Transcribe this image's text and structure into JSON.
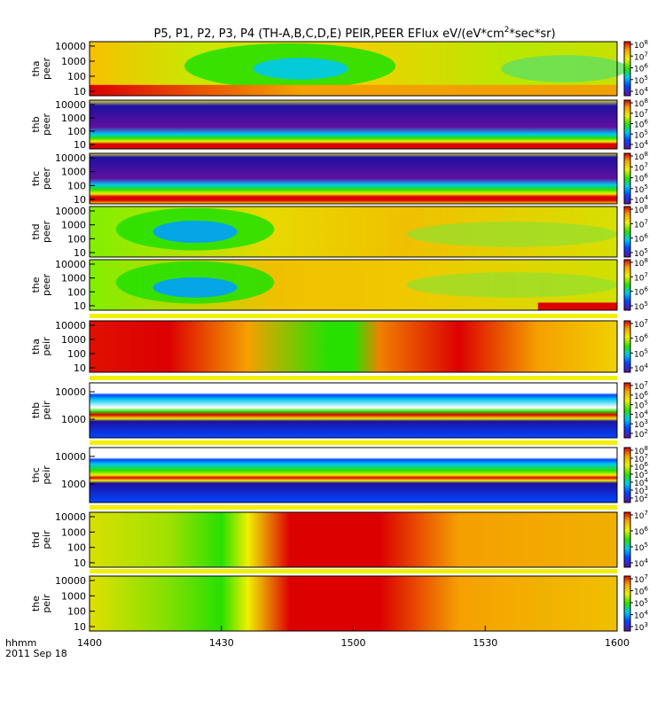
{
  "chart_data": {
    "type": "heatmap",
    "title": "P5, P1, P2, P3, P4 (TH-A,B,C,D,E) PEIR,PEER EFlux eV/(eV*cm",
    "title_sup": "2",
    "title_tail": "*sec*sr)",
    "xlabel_line1": "hhmm",
    "xlabel_line2": "2011 Sep 18",
    "x_ticks": [
      "1400",
      "1430",
      "1500",
      "1530",
      "1600"
    ],
    "x_range": [
      "1400",
      "1600"
    ],
    "panels": [
      {
        "name": "tha-peer",
        "ylabel": [
          "tha",
          "peer"
        ],
        "y_ticks": [
          "10000",
          "1000",
          "100",
          "10"
        ],
        "cbar_ticks": [
          {
            "base": "10",
            "exp": "8"
          },
          {
            "base": "10",
            "exp": "7"
          },
          {
            "base": "10",
            "exp": "6"
          },
          {
            "base": "10",
            "exp": "5"
          },
          {
            "base": "10",
            "exp": "4"
          }
        ],
        "colormap": "rainbow"
      },
      {
        "name": "thb-peer",
        "ylabel": [
          "thb",
          "peer"
        ],
        "y_ticks": [
          "10000",
          "1000",
          "100",
          "10"
        ],
        "cbar_ticks": [
          {
            "base": "10",
            "exp": "8"
          },
          {
            "base": "10",
            "exp": "7"
          },
          {
            "base": "10",
            "exp": "6"
          },
          {
            "base": "10",
            "exp": "5"
          },
          {
            "base": "10",
            "exp": "4"
          }
        ],
        "colormap": "rainbow"
      },
      {
        "name": "thc-peer",
        "ylabel": [
          "thc",
          "peer"
        ],
        "y_ticks": [
          "10000",
          "1000",
          "100",
          "10"
        ],
        "cbar_ticks": [
          {
            "base": "10",
            "exp": "8"
          },
          {
            "base": "10",
            "exp": "7"
          },
          {
            "base": "10",
            "exp": "6"
          },
          {
            "base": "10",
            "exp": "5"
          },
          {
            "base": "10",
            "exp": "4"
          }
        ],
        "colormap": "rainbow"
      },
      {
        "name": "thd-peer",
        "ylabel": [
          "thd",
          "peer"
        ],
        "y_ticks": [
          "10000",
          "1000",
          "100",
          "10"
        ],
        "cbar_ticks": [
          {
            "base": "10",
            "exp": "8"
          },
          {
            "base": "10",
            "exp": "7"
          },
          {
            "base": "10",
            "exp": "6"
          },
          {
            "base": "10",
            "exp": "5"
          }
        ],
        "colormap": "rainbow"
      },
      {
        "name": "the-peer",
        "ylabel": [
          "the",
          "peer"
        ],
        "y_ticks": [
          "10000",
          "1000",
          "100",
          "10"
        ],
        "cbar_ticks": [
          {
            "base": "10",
            "exp": "8"
          },
          {
            "base": "10",
            "exp": "7"
          },
          {
            "base": "10",
            "exp": "6"
          },
          {
            "base": "10",
            "exp": "5"
          }
        ],
        "colormap": "rainbow"
      },
      {
        "name": "tha-peir",
        "ylabel": [
          "tha",
          "peir"
        ],
        "y_ticks": [
          "10000",
          "1000",
          "100",
          "10"
        ],
        "cbar_ticks": [
          {
            "base": "10",
            "exp": "7"
          },
          {
            "base": "10",
            "exp": "6"
          },
          {
            "base": "10",
            "exp": "5"
          },
          {
            "base": "10",
            "exp": "4"
          }
        ],
        "colormap": "rainbow"
      },
      {
        "name": "thb-peir",
        "ylabel": [
          "thb",
          "peir"
        ],
        "y_ticks": [
          "10000",
          "1000"
        ],
        "cbar_ticks": [
          {
            "base": "10",
            "exp": "7"
          },
          {
            "base": "10",
            "exp": "6"
          },
          {
            "base": "10",
            "exp": "5"
          },
          {
            "base": "10",
            "exp": "4"
          },
          {
            "base": "10",
            "exp": "3"
          },
          {
            "base": "10",
            "exp": "2"
          }
        ],
        "colormap": "rainbow"
      },
      {
        "name": "thc-peir",
        "ylabel": [
          "thc",
          "peir"
        ],
        "y_ticks": [
          "10000",
          "1000"
        ],
        "cbar_ticks": [
          {
            "base": "10",
            "exp": "8"
          },
          {
            "base": "10",
            "exp": "7"
          },
          {
            "base": "10",
            "exp": "6"
          },
          {
            "base": "10",
            "exp": "5"
          },
          {
            "base": "10",
            "exp": "4"
          },
          {
            "base": "10",
            "exp": "3"
          },
          {
            "base": "10",
            "exp": "2"
          }
        ],
        "colormap": "rainbow"
      },
      {
        "name": "thd-peir",
        "ylabel": [
          "thd",
          "peir"
        ],
        "y_ticks": [
          "10000",
          "1000",
          "100",
          "10"
        ],
        "cbar_ticks": [
          {
            "base": "10",
            "exp": "7"
          },
          {
            "base": "10",
            "exp": "6"
          },
          {
            "base": "10",
            "exp": "5"
          },
          {
            "base": "10",
            "exp": "4"
          }
        ],
        "colormap": "rainbow"
      },
      {
        "name": "the-peir",
        "ylabel": [
          "the",
          "peir"
        ],
        "y_ticks": [
          "10000",
          "1000",
          "100",
          "10"
        ],
        "cbar_ticks": [
          {
            "base": "10",
            "exp": "7"
          },
          {
            "base": "10",
            "exp": "6"
          },
          {
            "base": "10",
            "exp": "5"
          },
          {
            "base": "10",
            "exp": "4"
          },
          {
            "base": "10",
            "exp": "3"
          }
        ],
        "colormap": "rainbow"
      }
    ]
  },
  "colors": {
    "red": "#dc0000",
    "orange": "#f5a000",
    "yellow": "#f0f000",
    "green": "#28e000",
    "cyan": "#00c8f0",
    "blue": "#0046ff",
    "navy": "#1e10a0",
    "purple": "#6010a0"
  }
}
